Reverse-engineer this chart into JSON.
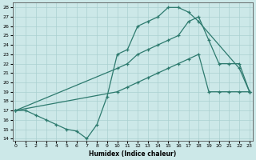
{
  "xlabel": "Humidex (Indice chaleur)",
  "xlim": [
    -0.3,
    23.3
  ],
  "ylim": [
    13.8,
    28.5
  ],
  "yticks": [
    14,
    15,
    16,
    17,
    18,
    19,
    20,
    21,
    22,
    23,
    24,
    25,
    26,
    27,
    28
  ],
  "xticks": [
    0,
    1,
    2,
    3,
    4,
    5,
    6,
    7,
    8,
    9,
    10,
    11,
    12,
    13,
    14,
    15,
    16,
    17,
    18,
    19,
    20,
    21,
    22,
    23
  ],
  "line_color": "#2d7a6e",
  "bg_color": "#cce8e8",
  "grid_color": "#aad0d0",
  "line1_x": [
    0,
    1,
    2,
    3,
    4,
    5,
    6,
    7,
    8,
    9,
    10,
    11,
    12,
    13,
    14,
    15,
    16,
    17,
    18,
    22,
    23
  ],
  "line1_y": [
    17,
    17,
    16.5,
    16,
    15.5,
    15,
    14.8,
    14,
    15.5,
    18.5,
    23,
    23.5,
    26,
    26.5,
    27,
    28,
    28,
    27.5,
    26.5,
    21.5,
    19
  ],
  "line2_x": [
    0,
    1,
    2,
    10,
    11,
    12,
    13,
    14,
    15,
    16,
    17,
    18,
    19,
    20,
    21,
    22,
    23
  ],
  "line2_y": [
    17,
    17,
    17,
    21.5,
    22,
    23,
    23.5,
    24,
    24.5,
    25,
    26.5,
    27,
    24.5,
    22,
    22,
    22,
    19
  ],
  "line3_x": [
    0,
    1,
    2,
    10,
    11,
    12,
    13,
    14,
    15,
    16,
    17,
    18,
    19,
    20,
    21,
    22,
    23
  ],
  "line3_y": [
    17,
    17,
    17,
    19,
    19.5,
    20,
    20.5,
    21,
    21.5,
    22,
    22.5,
    23,
    19,
    19,
    19,
    19,
    19
  ]
}
